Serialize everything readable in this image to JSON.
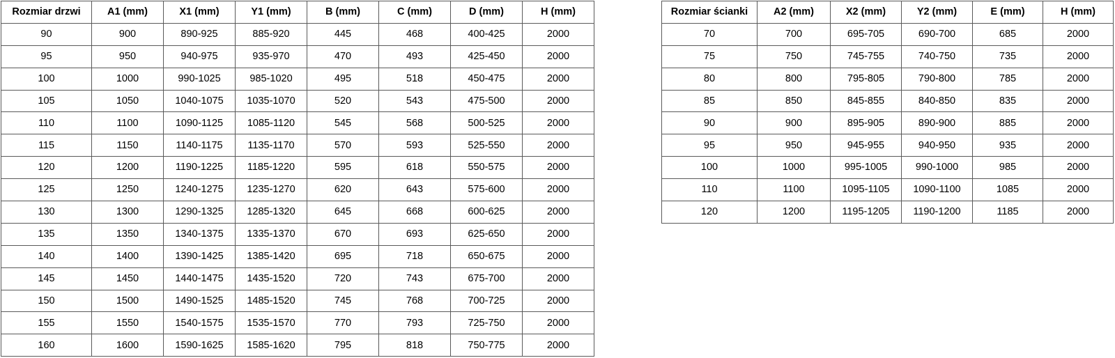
{
  "page": {
    "background": "#ffffff",
    "text_color": "#000000",
    "border_color": "#595959"
  },
  "door_table": {
    "title": "Rozmiar drzwi",
    "headers": [
      "Rozmiar drzwi",
      "A1 (mm)",
      "X1 (mm)",
      "Y1 (mm)",
      "B (mm)",
      "C (mm)",
      "D (mm)",
      "H (mm)"
    ],
    "rows": [
      [
        "90",
        "900",
        "890-925",
        "885-920",
        "445",
        "468",
        "400-425",
        "2000"
      ],
      [
        "95",
        "950",
        "940-975",
        "935-970",
        "470",
        "493",
        "425-450",
        "2000"
      ],
      [
        "100",
        "1000",
        "990-1025",
        "985-1020",
        "495",
        "518",
        "450-475",
        "2000"
      ],
      [
        "105",
        "1050",
        "1040-1075",
        "1035-1070",
        "520",
        "543",
        "475-500",
        "2000"
      ],
      [
        "110",
        "1100",
        "1090-1125",
        "1085-1120",
        "545",
        "568",
        "500-525",
        "2000"
      ],
      [
        "115",
        "1150",
        "1140-1175",
        "1135-1170",
        "570",
        "593",
        "525-550",
        "2000"
      ],
      [
        "120",
        "1200",
        "1190-1225",
        "1185-1220",
        "595",
        "618",
        "550-575",
        "2000"
      ],
      [
        "125",
        "1250",
        "1240-1275",
        "1235-1270",
        "620",
        "643",
        "575-600",
        "2000"
      ],
      [
        "130",
        "1300",
        "1290-1325",
        "1285-1320",
        "645",
        "668",
        "600-625",
        "2000"
      ],
      [
        "135",
        "1350",
        "1340-1375",
        "1335-1370",
        "670",
        "693",
        "625-650",
        "2000"
      ],
      [
        "140",
        "1400",
        "1390-1425",
        "1385-1420",
        "695",
        "718",
        "650-675",
        "2000"
      ],
      [
        "145",
        "1450",
        "1440-1475",
        "1435-1520",
        "720",
        "743",
        "675-700",
        "2000"
      ],
      [
        "150",
        "1500",
        "1490-1525",
        "1485-1520",
        "745",
        "768",
        "700-725",
        "2000"
      ],
      [
        "155",
        "1550",
        "1540-1575",
        "1535-1570",
        "770",
        "793",
        "725-750",
        "2000"
      ],
      [
        "160",
        "1600",
        "1590-1625",
        "1585-1620",
        "795",
        "818",
        "750-775",
        "2000"
      ]
    ]
  },
  "wall_table": {
    "title": "Rozmiar ścianki",
    "headers": [
      "Rozmiar ścianki",
      "A2 (mm)",
      "X2 (mm)",
      "Y2 (mm)",
      "E (mm)",
      "H (mm)"
    ],
    "rows": [
      [
        "70",
        "700",
        "695-705",
        "690-700",
        "685",
        "2000"
      ],
      [
        "75",
        "750",
        "745-755",
        "740-750",
        "735",
        "2000"
      ],
      [
        "80",
        "800",
        "795-805",
        "790-800",
        "785",
        "2000"
      ],
      [
        "85",
        "850",
        "845-855",
        "840-850",
        "835",
        "2000"
      ],
      [
        "90",
        "900",
        "895-905",
        "890-900",
        "885",
        "2000"
      ],
      [
        "95",
        "950",
        "945-955",
        "940-950",
        "935",
        "2000"
      ],
      [
        "100",
        "1000",
        "995-1005",
        "990-1000",
        "985",
        "2000"
      ],
      [
        "110",
        "1100",
        "1095-1105",
        "1090-1100",
        "1085",
        "2000"
      ],
      [
        "120",
        "1200",
        "1195-1205",
        "1190-1200",
        "1185",
        "2000"
      ]
    ]
  }
}
